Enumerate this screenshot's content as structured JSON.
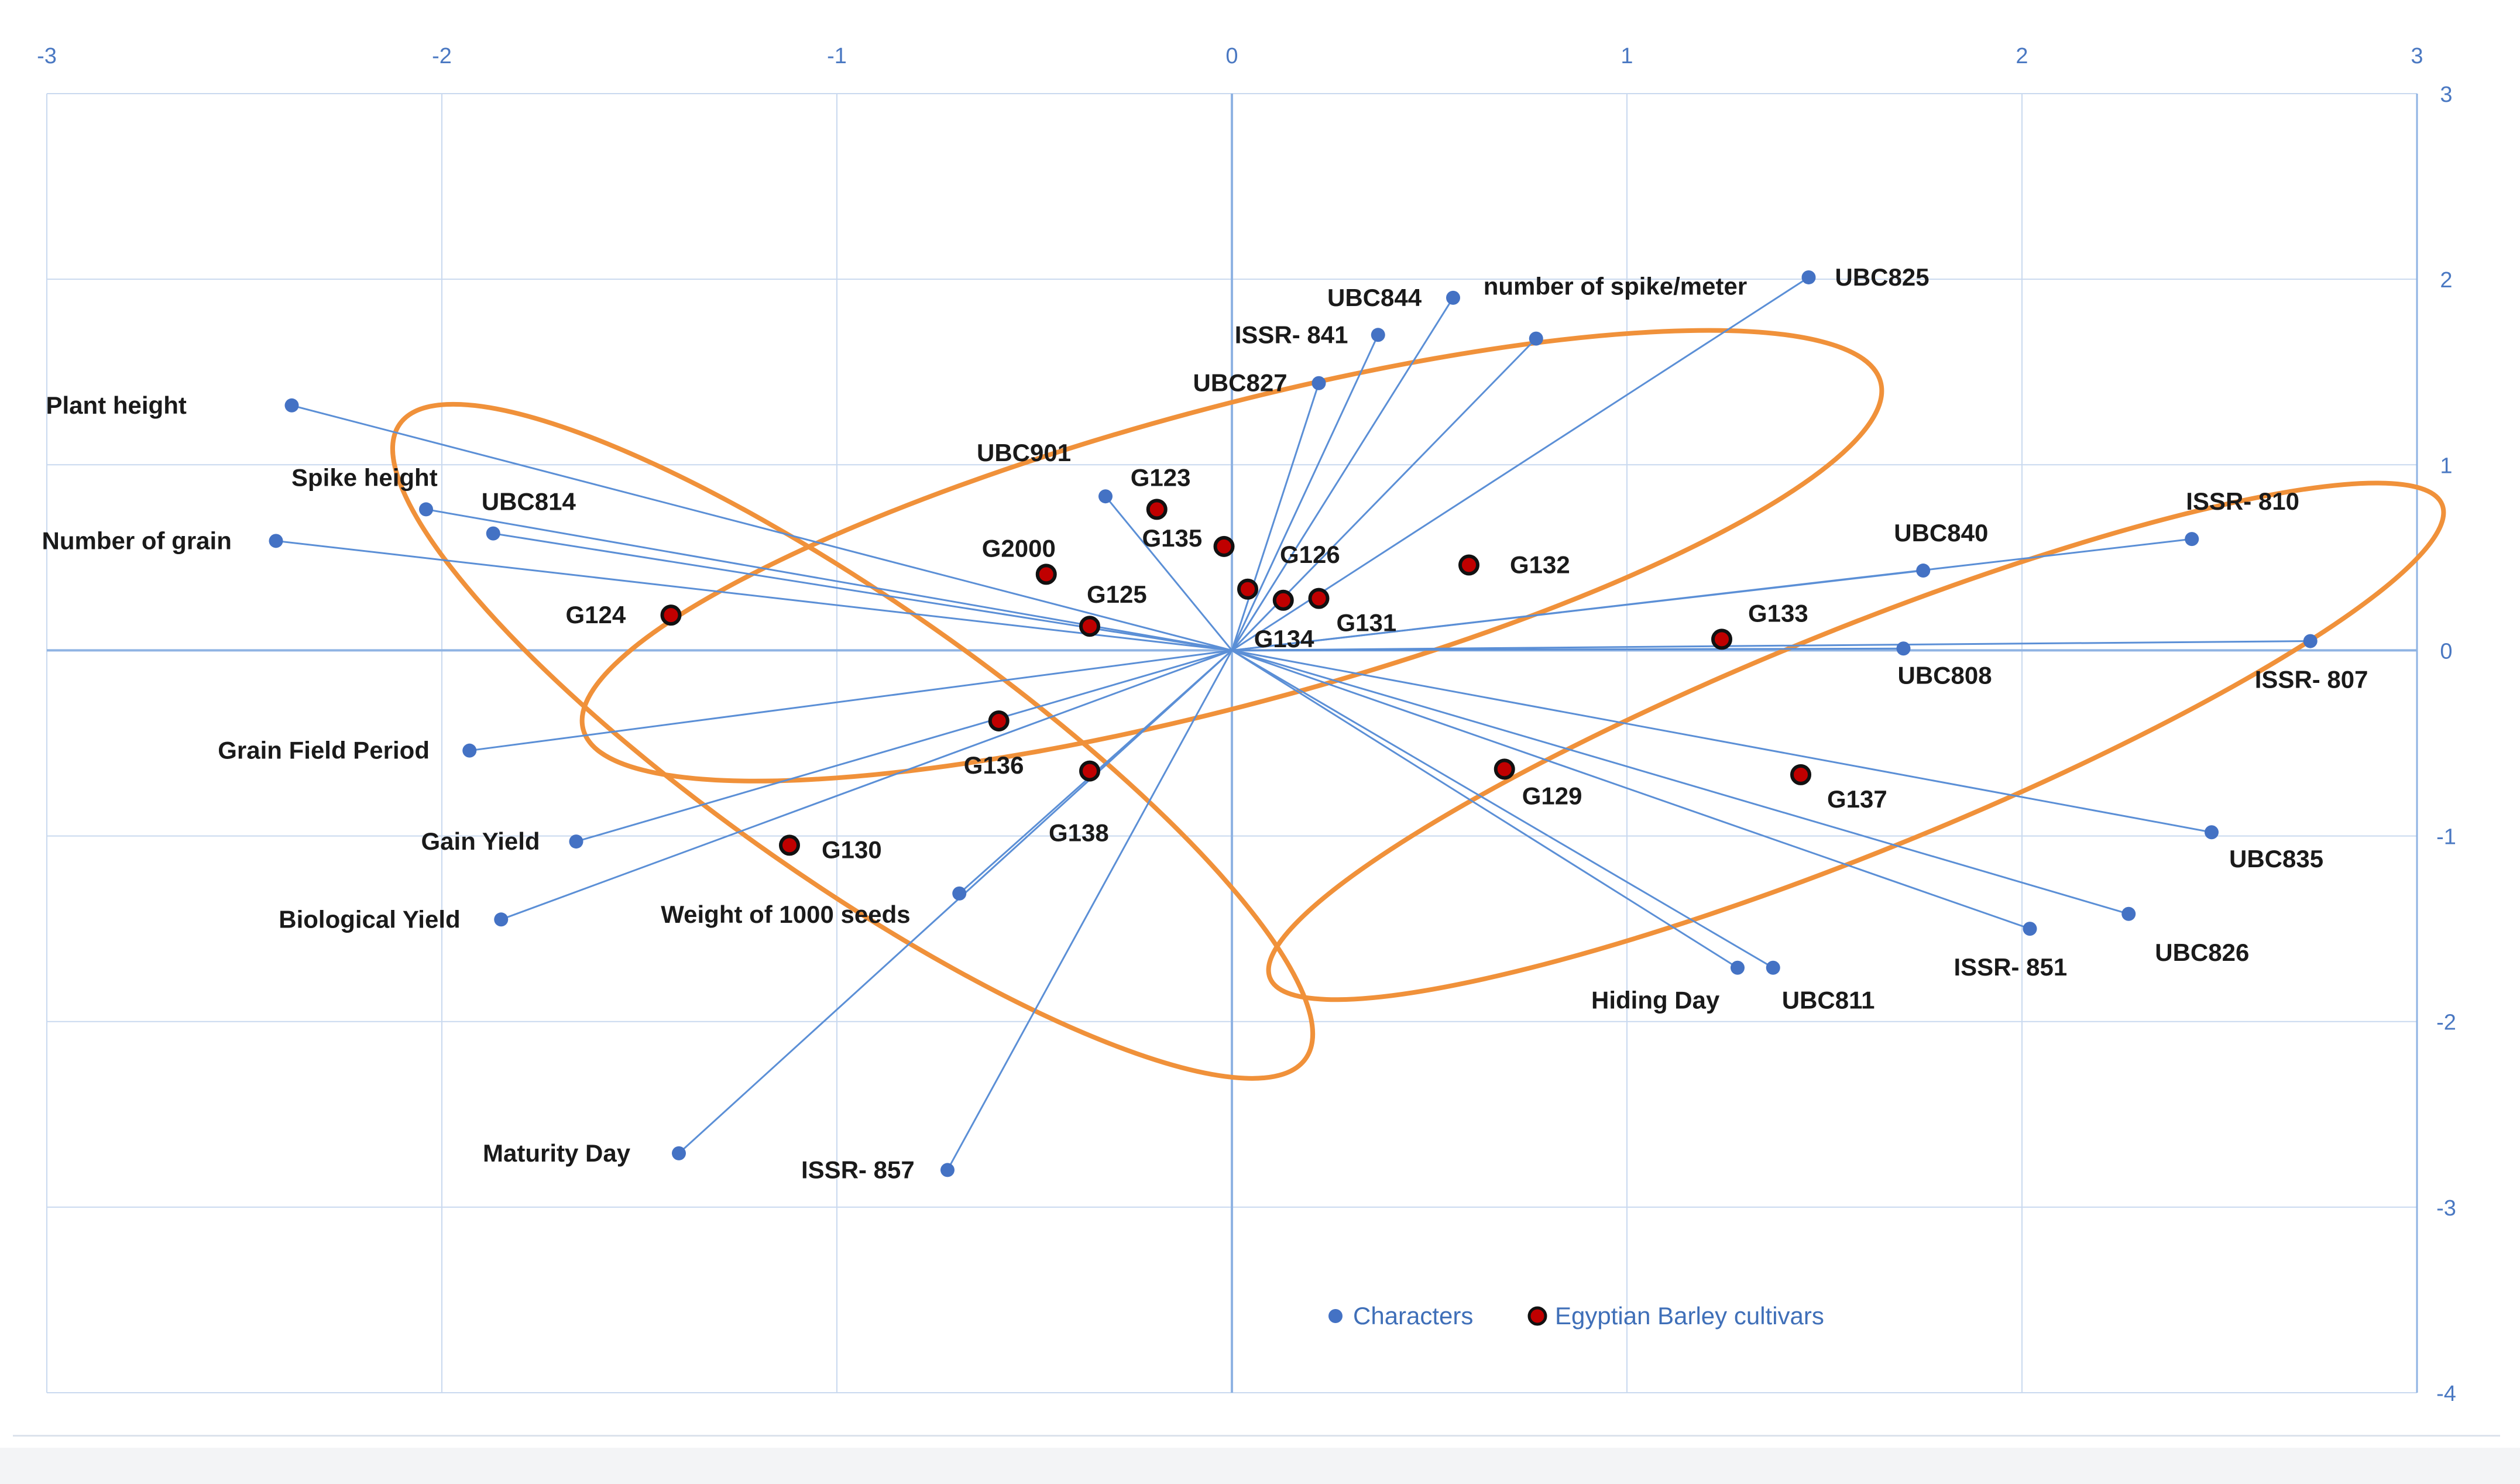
{
  "chart_data": {
    "type": "scatter",
    "title": "",
    "xlabel": "",
    "ylabel": "",
    "xlim": [
      -3,
      3
    ],
    "ylim": [
      -4,
      3
    ],
    "grid": true,
    "x_ticks": [
      "-3",
      "-2",
      "-1",
      "0",
      "1",
      "2",
      "3"
    ],
    "y_ticks": [
      "3",
      "2",
      "1",
      "0",
      "-1",
      "-2",
      "-3",
      "-4"
    ],
    "legend": [
      {
        "name": "Characters",
        "color": "#4472c4"
      },
      {
        "name": "Egyptian Barley cultivars",
        "color": "#c00000"
      }
    ],
    "colors": {
      "vector": "#5b8fd6",
      "point": "#4472c4",
      "cultivar_fill": "#c00000",
      "ellipse": "#f0913a",
      "axis": "#8fb3e3"
    },
    "series": [
      {
        "name": "Characters",
        "points": [
          {
            "label": "Plant height",
            "x": -2.38,
            "y": 1.32
          },
          {
            "label": "Spike height",
            "x": -2.04,
            "y": 0.76
          },
          {
            "label": "UBC814",
            "x": -1.87,
            "y": 0.63
          },
          {
            "label": "Number of grain",
            "x": -2.42,
            "y": 0.59
          },
          {
            "label": "Grain Field Period",
            "x": -1.93,
            "y": -0.54
          },
          {
            "label": "Gain Yield",
            "x": -1.66,
            "y": -1.03
          },
          {
            "label": "Biological Yield",
            "x": -1.85,
            "y": -1.45
          },
          {
            "label": "Weight of 1000 seeds",
            "x": -0.69,
            "y": -1.31
          },
          {
            "label": "Maturity Day",
            "x": -1.4,
            "y": -2.71
          },
          {
            "label": "ISSR- 857",
            "x": -0.72,
            "y": -2.8
          },
          {
            "label": "UBC901",
            "x": -0.32,
            "y": 0.83
          },
          {
            "label": "UBC827",
            "x": 0.22,
            "y": 1.44
          },
          {
            "label": "ISSR- 841",
            "x": 0.37,
            "y": 1.7
          },
          {
            "label": "UBC844",
            "x": 0.56,
            "y": 1.9
          },
          {
            "label": "number of spike/meter",
            "x": 0.77,
            "y": 1.68
          },
          {
            "label": "UBC825",
            "x": 1.46,
            "y": 2.01
          },
          {
            "label": "UBC840",
            "x": 1.75,
            "y": 0.43
          },
          {
            "label": "ISSR- 810",
            "x": 2.43,
            "y": 0.6
          },
          {
            "label": "UBC808",
            "x": 1.7,
            "y": 0.01
          },
          {
            "label": "ISSR- 807",
            "x": 2.73,
            "y": 0.05
          },
          {
            "label": "UBC835",
            "x": 2.48,
            "y": -0.98
          },
          {
            "label": "UBC826",
            "x": 2.27,
            "y": -1.42
          },
          {
            "label": "ISSR- 851",
            "x": 2.02,
            "y": -1.5
          },
          {
            "label": "Hiding Day",
            "x": 1.28,
            "y": -1.71
          },
          {
            "label": "UBC811",
            "x": 1.37,
            "y": -1.71
          }
        ]
      },
      {
        "name": "Egyptian Barley cultivars",
        "points": [
          {
            "label": "G124",
            "x": -1.42,
            "y": 0.19
          },
          {
            "label": "G123",
            "x": -0.19,
            "y": 0.76
          },
          {
            "label": "G135",
            "x": -0.02,
            "y": 0.56
          },
          {
            "label": "G2000",
            "x": -0.47,
            "y": 0.41
          },
          {
            "label": "G125",
            "x": -0.36,
            "y": 0.13
          },
          {
            "label": "G126",
            "x": 0.04,
            "y": 0.33
          },
          {
            "label": "G131",
            "x": 0.22,
            "y": 0.28
          },
          {
            "label": "G134",
            "x": 0.13,
            "y": 0.27
          },
          {
            "label": "G132",
            "x": 0.6,
            "y": 0.46
          },
          {
            "label": "G133",
            "x": 1.24,
            "y": 0.06
          },
          {
            "label": "G136",
            "x": -0.59,
            "y": -0.38
          },
          {
            "label": "G138",
            "x": -0.36,
            "y": -0.65
          },
          {
            "label": "G130",
            "x": -1.12,
            "y": -1.05
          },
          {
            "label": "G129",
            "x": 0.69,
            "y": -0.64
          },
          {
            "label": "G137",
            "x": 1.44,
            "y": -0.67
          }
        ]
      }
    ],
    "ellipses": [
      {
        "name": "center-cluster",
        "cx": 0.0,
        "cy": 0.51,
        "rx": 1.7,
        "ry": 0.8,
        "angle_deg": -15
      },
      {
        "name": "left-cluster",
        "cx": -0.96,
        "cy": -0.49,
        "rx": 1.4,
        "ry": 0.75,
        "angle_deg": 35
      },
      {
        "name": "right-cluster",
        "cx": 1.58,
        "cy": -0.49,
        "rx": 1.6,
        "ry": 0.6,
        "angle_deg": -22
      }
    ]
  }
}
